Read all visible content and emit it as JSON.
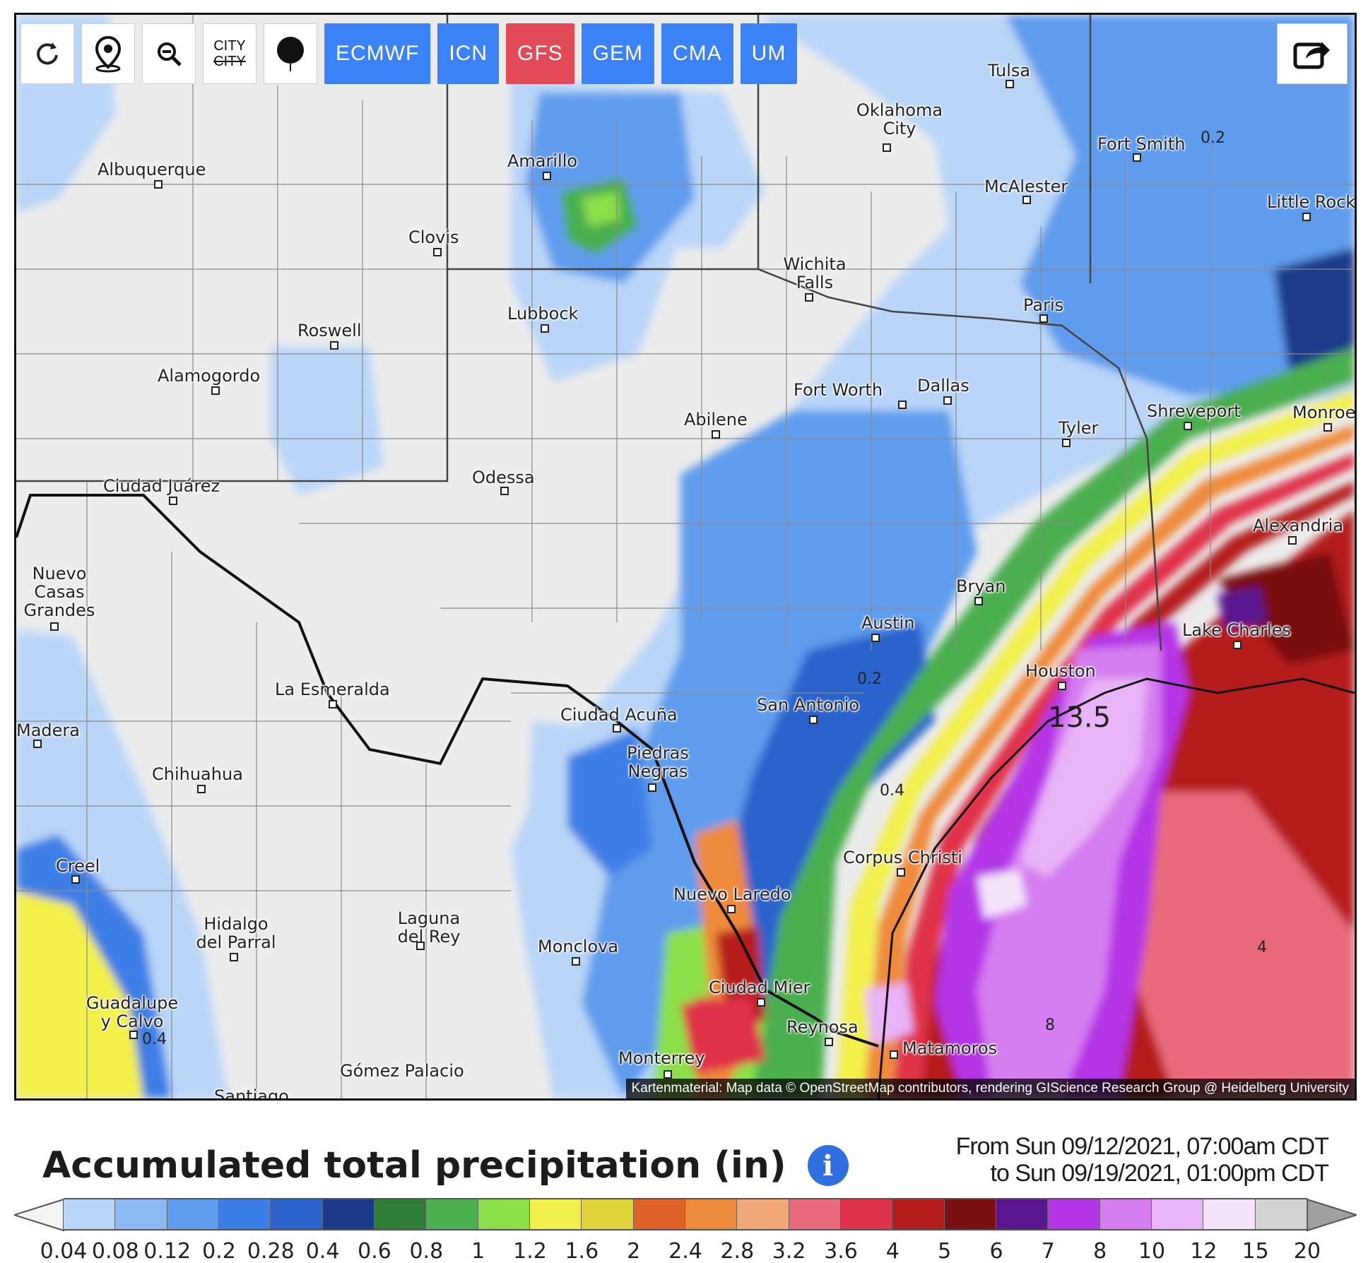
{
  "toolbar": {
    "reload_icon": "reload-icon",
    "location_icon": "map-pin-icon",
    "zoom_icon": "zoom-out-icon",
    "city_toggle": {
      "line1": "CITY",
      "line2": "CITY"
    },
    "balloon_icon": "balloon-icon",
    "models": [
      {
        "label": "ECMWF",
        "active": false
      },
      {
        "label": "ICN",
        "active": false
      },
      {
        "label": "GFS",
        "active": true
      },
      {
        "label": "GEM",
        "active": false
      },
      {
        "label": "CMA",
        "active": false
      },
      {
        "label": "UM",
        "active": false
      }
    ],
    "share_icon": "share-icon"
  },
  "map": {
    "cities": [
      {
        "name": "Tulsa"
      },
      {
        "name": "Oklahoma City"
      },
      {
        "name": "Fort Smith"
      },
      {
        "name": "McAlester"
      },
      {
        "name": "Little Rock"
      },
      {
        "name": "Albuquerque"
      },
      {
        "name": "Amarillo"
      },
      {
        "name": "Clovis"
      },
      {
        "name": "Wichita Falls"
      },
      {
        "name": "Paris"
      },
      {
        "name": "Lubbock"
      },
      {
        "name": "Roswell"
      },
      {
        "name": "Alamogordo"
      },
      {
        "name": "Fort Worth"
      },
      {
        "name": "Dallas"
      },
      {
        "name": "Shreveport"
      },
      {
        "name": "Monroe"
      },
      {
        "name": "Abilene"
      },
      {
        "name": "Tyler"
      },
      {
        "name": "Odessa"
      },
      {
        "name": "Ciudad Juárez"
      },
      {
        "name": "Alexandria"
      },
      {
        "name": "Nuevo Casas Grandes"
      },
      {
        "name": "Bryan"
      },
      {
        "name": "Lake Charles"
      },
      {
        "name": "Austin"
      },
      {
        "name": "Houston"
      },
      {
        "name": "La Esmeralda"
      },
      {
        "name": "San Antonio"
      },
      {
        "name": "Ciudad Acuña"
      },
      {
        "name": "Madera"
      },
      {
        "name": "Piedras Negras"
      },
      {
        "name": "Chihuahua"
      },
      {
        "name": "Corpus Christi"
      },
      {
        "name": "Creel"
      },
      {
        "name": "Nuevo Laredo"
      },
      {
        "name": "Hidalgo del Parral"
      },
      {
        "name": "Laguna del Rey"
      },
      {
        "name": "Monclova"
      },
      {
        "name": "Ciudad Mier"
      },
      {
        "name": "Guadalupe y Calvo"
      },
      {
        "name": "Reynosa"
      },
      {
        "name": "Matamoros"
      },
      {
        "name": "Monterrey"
      },
      {
        "name": "Gómez Palacio"
      },
      {
        "name": "Santiago"
      }
    ],
    "contour_labels": [
      "0.2",
      "0.2",
      "0.4",
      "0.4",
      "13.5",
      "8",
      "4"
    ],
    "attribution": "Kartenmaterial: Map data © OpenStreetMap contributors, rendering GIScience Research Group @ Heidelberg University"
  },
  "title": "Accumulated total precipitation (in)",
  "info_icon": "info-icon",
  "date_range": {
    "from": "From Sun 09/12/2021, 07:00am CDT",
    "to": "to Sun 09/19/2021, 01:00pm CDT"
  },
  "legend": {
    "unit": "in",
    "colors": [
      "#b9d6f8",
      "#8cb9f2",
      "#5f9ced",
      "#3c7fe6",
      "#2a64cc",
      "#1a3a8a",
      "#2e7d32",
      "#4caf50",
      "#8be04a",
      "#f2f04a",
      "#e0d43a",
      "#e0632a",
      "#ef8a3a",
      "#f2a877",
      "#e86a7a",
      "#e0324a",
      "#b51c1c",
      "#7a1010",
      "#5a1590",
      "#b436e6",
      "#d67ef0",
      "#e9b4f7",
      "#f6e4fb",
      "#d2d2d2"
    ],
    "ticks": [
      "0.04",
      "0.08",
      "0.12",
      "0.2",
      "0.28",
      "0.4",
      "0.6",
      "0.8",
      "1",
      "1.2",
      "1.6",
      "2",
      "2.4",
      "2.8",
      "3.2",
      "3.6",
      "4",
      "5",
      "6",
      "7",
      "8",
      "10",
      "12",
      "15",
      "20"
    ]
  }
}
